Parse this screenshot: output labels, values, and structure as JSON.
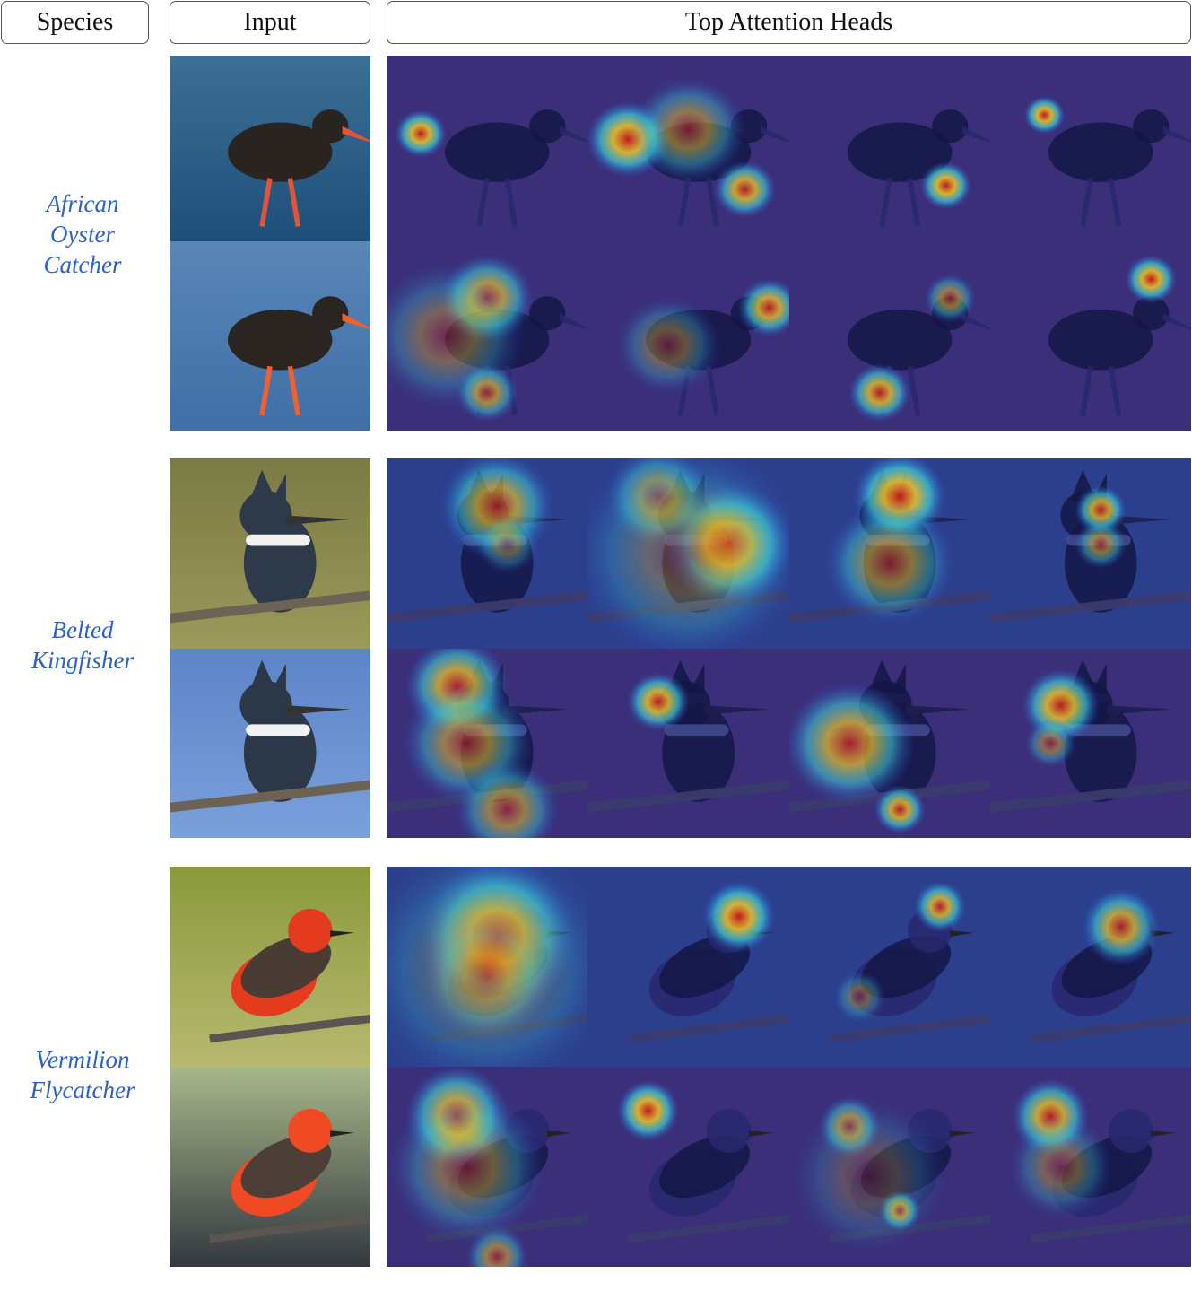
{
  "headers": {
    "species": "Species",
    "input": "Input",
    "heads": "Top Attention Heads"
  },
  "species": [
    {
      "lines": [
        "African",
        "Oyster",
        "Catcher"
      ]
    },
    {
      "lines": [
        "Belted",
        "Kingfisher"
      ]
    },
    {
      "lines": [
        "Vermilion",
        "Flycatcher"
      ]
    }
  ],
  "colors": {
    "label": "#2a63c4",
    "heatmap_low": "#3a2a8a",
    "heatmap_high": "#c0181a"
  }
}
